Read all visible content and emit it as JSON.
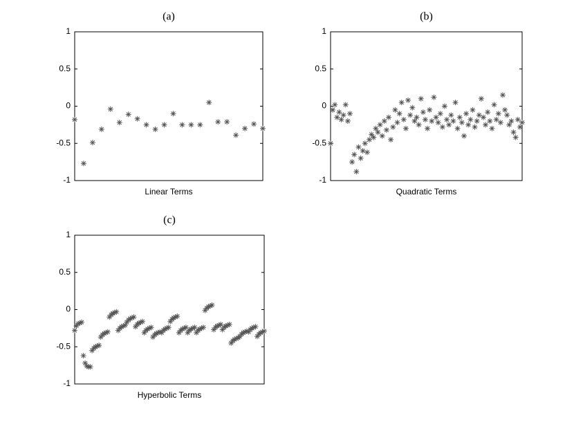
{
  "chart_data": [
    {
      "type": "scatter",
      "title": "(a)",
      "xlabel": "Linear Terms",
      "color": "#555555",
      "ylim": [
        -1,
        1
      ],
      "yticks": [
        -1,
        -0.5,
        0,
        0.5,
        1
      ],
      "values": [
        -0.18,
        -0.77,
        -0.49,
        -0.31,
        -0.04,
        -0.22,
        -0.11,
        -0.17,
        -0.25,
        -0.31,
        -0.25,
        -0.1,
        -0.25,
        -0.25,
        -0.25,
        0.05,
        -0.21,
        -0.21,
        -0.39,
        -0.3,
        -0.24,
        -0.3
      ]
    },
    {
      "type": "scatter",
      "title": "(b)",
      "xlabel": "Quadratic Terms",
      "color": "#555555",
      "ylim": [
        -1,
        1
      ],
      "yticks": [
        -1,
        -0.5,
        0,
        0.5,
        1
      ],
      "values": [
        -0.5,
        -0.05,
        0.02,
        -0.15,
        -0.08,
        -0.18,
        -0.12,
        0.02,
        -0.2,
        -0.1,
        -0.75,
        -0.65,
        -0.88,
        -0.55,
        -0.7,
        -0.6,
        -0.5,
        -0.62,
        -0.45,
        -0.38,
        -0.42,
        -0.3,
        -0.35,
        -0.25,
        -0.4,
        -0.2,
        -0.32,
        -0.15,
        -0.45,
        -0.28,
        -0.05,
        -0.22,
        -0.1,
        0.05,
        -0.18,
        -0.3,
        0.08,
        -0.12,
        -0.02,
        -0.2,
        -0.15,
        -0.25,
        0.1,
        -0.08,
        -0.18,
        -0.3,
        -0.05,
        -0.2,
        0.12,
        -0.15,
        -0.22,
        -0.1,
        -0.28,
        0.0,
        -0.18,
        -0.25,
        -0.12,
        -0.2,
        0.05,
        -0.3,
        -0.15,
        -0.22,
        -0.4,
        -0.1,
        -0.25,
        -0.18,
        -0.05,
        -0.28,
        -0.2,
        -0.12,
        0.1,
        -0.15,
        -0.25,
        -0.08,
        -0.2,
        -0.3,
        0.02,
        -0.18,
        -0.1,
        -0.22,
        0.15,
        -0.05,
        -0.12,
        -0.25,
        -0.2,
        -0.35,
        -0.42,
        -0.18,
        -0.28,
        -0.22
      ]
    },
    {
      "type": "scatter",
      "title": "(c)",
      "xlabel": "Hyperbolic Terms",
      "color": "#555555",
      "ylim": [
        -1,
        1
      ],
      "yticks": [
        -1,
        -0.5,
        0,
        0.5,
        1
      ],
      "values": [
        -0.28,
        -0.22,
        -0.19,
        -0.18,
        -0.17,
        -0.62,
        -0.72,
        -0.76,
        -0.77,
        -0.77,
        -0.55,
        -0.52,
        -0.5,
        -0.49,
        -0.48,
        -0.37,
        -0.34,
        -0.32,
        -0.31,
        -0.3,
        -0.1,
        -0.07,
        -0.05,
        -0.04,
        -0.03,
        -0.28,
        -0.25,
        -0.23,
        -0.22,
        -0.21,
        -0.17,
        -0.14,
        -0.12,
        -0.11,
        -0.1,
        -0.23,
        -0.2,
        -0.18,
        -0.17,
        -0.16,
        -0.31,
        -0.28,
        -0.26,
        -0.25,
        -0.24,
        -0.37,
        -0.34,
        -0.32,
        -0.31,
        -0.3,
        -0.31,
        -0.28,
        -0.26,
        -0.25,
        -0.24,
        -0.16,
        -0.13,
        -0.11,
        -0.1,
        -0.09,
        -0.31,
        -0.28,
        -0.26,
        -0.25,
        -0.24,
        -0.31,
        -0.28,
        -0.26,
        -0.25,
        -0.24,
        -0.31,
        -0.28,
        -0.26,
        -0.25,
        -0.24,
        -0.01,
        0.02,
        0.04,
        0.05,
        0.06,
        -0.27,
        -0.24,
        -0.22,
        -0.21,
        -0.2,
        -0.27,
        -0.24,
        -0.22,
        -0.21,
        -0.2,
        -0.45,
        -0.42,
        -0.4,
        -0.39,
        -0.38,
        -0.36,
        -0.33,
        -0.31,
        -0.3,
        -0.29,
        -0.3,
        -0.27,
        -0.25,
        -0.24,
        -0.23,
        -0.36,
        -0.33,
        -0.31,
        -0.3,
        -0.29
      ]
    }
  ]
}
